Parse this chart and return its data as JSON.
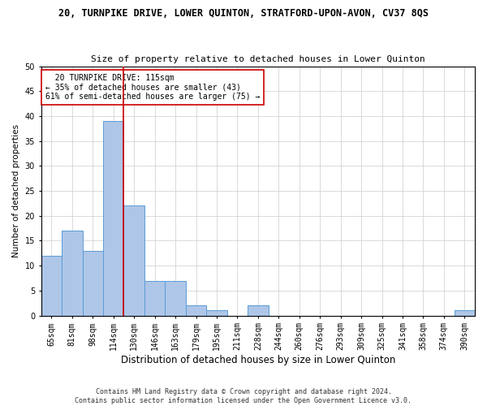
{
  "title": "20, TURNPIKE DRIVE, LOWER QUINTON, STRATFORD-UPON-AVON, CV37 8QS",
  "subtitle": "Size of property relative to detached houses in Lower Quinton",
  "xlabel": "Distribution of detached houses by size in Lower Quinton",
  "ylabel": "Number of detached properties",
  "categories": [
    "65sqm",
    "81sqm",
    "98sqm",
    "114sqm",
    "130sqm",
    "146sqm",
    "163sqm",
    "179sqm",
    "195sqm",
    "211sqm",
    "228sqm",
    "244sqm",
    "260sqm",
    "276sqm",
    "293sqm",
    "309sqm",
    "325sqm",
    "341sqm",
    "358sqm",
    "374sqm",
    "390sqm"
  ],
  "values": [
    12,
    17,
    13,
    39,
    22,
    7,
    7,
    2,
    1,
    0,
    2,
    0,
    0,
    0,
    0,
    0,
    0,
    0,
    0,
    0,
    1
  ],
  "bar_color": "#aec6e8",
  "bar_edgecolor": "#5b9bd5",
  "vline_x": 3.5,
  "vline_color": "#cc0000",
  "annotation_line1": "  20 TURNPIKE DRIVE: 115sqm",
  "annotation_line2": "← 35% of detached houses are smaller (43)",
  "annotation_line3": "61% of semi-detached houses are larger (75) →",
  "annotation_box_color": "#ffffff",
  "annotation_box_edgecolor": "#cc0000",
  "ylim": [
    0,
    50
  ],
  "yticks": [
    0,
    5,
    10,
    15,
    20,
    25,
    30,
    35,
    40,
    45,
    50
  ],
  "footer_line1": "Contains HM Land Registry data © Crown copyright and database right 2024.",
  "footer_line2": "Contains public sector information licensed under the Open Government Licence v3.0.",
  "background_color": "#ffffff",
  "grid_color": "#cccccc",
  "title_fontsize": 8.5,
  "subtitle_fontsize": 8.0,
  "xlabel_fontsize": 8.5,
  "ylabel_fontsize": 7.5,
  "tick_fontsize": 7.0,
  "annotation_fontsize": 7.0,
  "footer_fontsize": 6.0
}
